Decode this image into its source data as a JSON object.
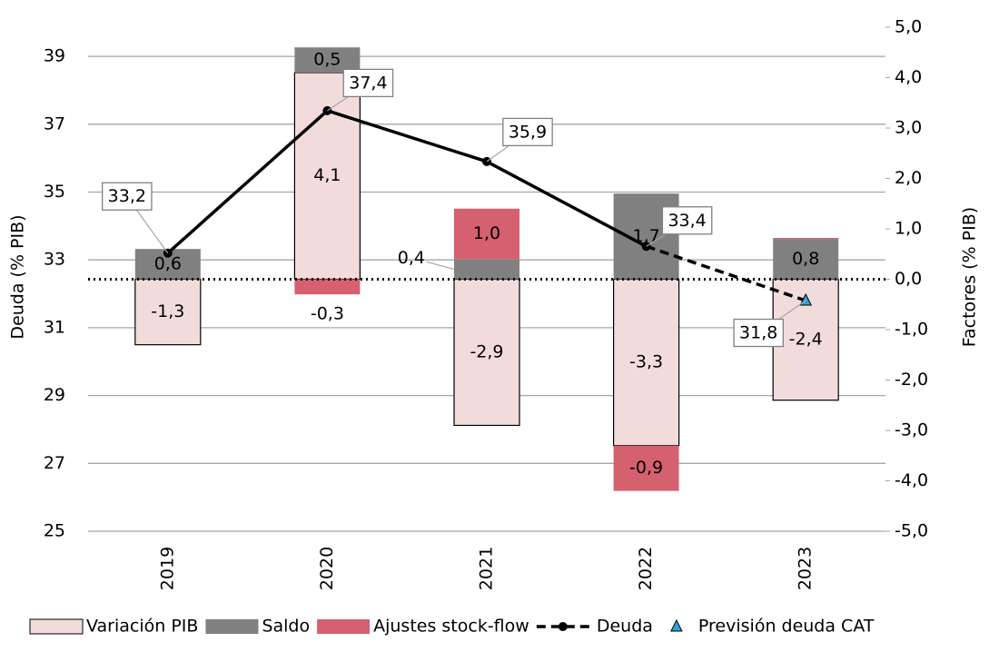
{
  "chart_data": {
    "type": "bar",
    "categories": [
      "2019",
      "2020",
      "2021",
      "2022",
      "2023"
    ],
    "y_label": "Deuda (% PIB)",
    "y2_label": "Factores (% PIB)",
    "ylim": [
      25,
      39.86
    ],
    "yticks": [
      25,
      27,
      29,
      31,
      33,
      35,
      37,
      39
    ],
    "y2lim": [
      -5,
      5
    ],
    "y2ticks": [
      {
        "value": -5,
        "label": "-5,0"
      },
      {
        "value": -4,
        "label": "-4,0"
      },
      {
        "value": -3,
        "label": "-3,0"
      },
      {
        "value": -2,
        "label": "-2,0"
      },
      {
        "value": -1,
        "label": "-1,0"
      },
      {
        "value": 0,
        "label": "0,0"
      },
      {
        "value": 1,
        "label": "1,0"
      },
      {
        "value": 2,
        "label": "2,0"
      },
      {
        "value": 3,
        "label": "3,0"
      },
      {
        "value": 4,
        "label": "4,0"
      },
      {
        "value": 5,
        "label": "5,0"
      }
    ],
    "grid": true,
    "series": [
      {
        "name": "Variación PIB",
        "type": "bar",
        "axis": "y2",
        "color": "#f2dcdb",
        "label_color": "#000000",
        "values": [
          -1.3,
          4.1,
          -2.9,
          -3.3,
          -2.4
        ],
        "value_labels": [
          "-1,3",
          "4,1",
          "-2,9",
          "-3,3",
          "-2,4"
        ]
      },
      {
        "name": "Saldo",
        "type": "bar",
        "axis": "y2",
        "color": "#808080",
        "label_color": "#ffffff",
        "values": [
          0.6,
          0.5,
          0.4,
          1.7,
          0.8
        ],
        "value_labels": [
          "0,6",
          "0,5",
          "0,4",
          "1,7",
          "0,8"
        ]
      },
      {
        "name": "Ajustes stock-flow",
        "type": "bar",
        "axis": "y2",
        "color": "#d5606f",
        "label_color": "#000000",
        "values": [
          0,
          -0.3,
          1.0,
          -0.9,
          0.02
        ],
        "value_labels": [
          null,
          "-0,3",
          "1,0",
          "-0,9",
          null
        ]
      },
      {
        "name": "Deuda",
        "type": "line",
        "color": "#000000",
        "dashed_from": 3,
        "values": [
          33.2,
          37.4,
          35.9,
          33.4,
          31.8
        ],
        "value_labels": [
          "33,2",
          "37,4",
          "35,9",
          "33,4",
          null
        ]
      },
      {
        "name": "Previsión deuda CAT",
        "type": "scatter",
        "color": "#2ea3d6",
        "values": [
          null,
          null,
          null,
          null,
          31.8
        ],
        "value_labels": [
          null,
          null,
          null,
          null,
          "31,8"
        ]
      }
    ]
  }
}
